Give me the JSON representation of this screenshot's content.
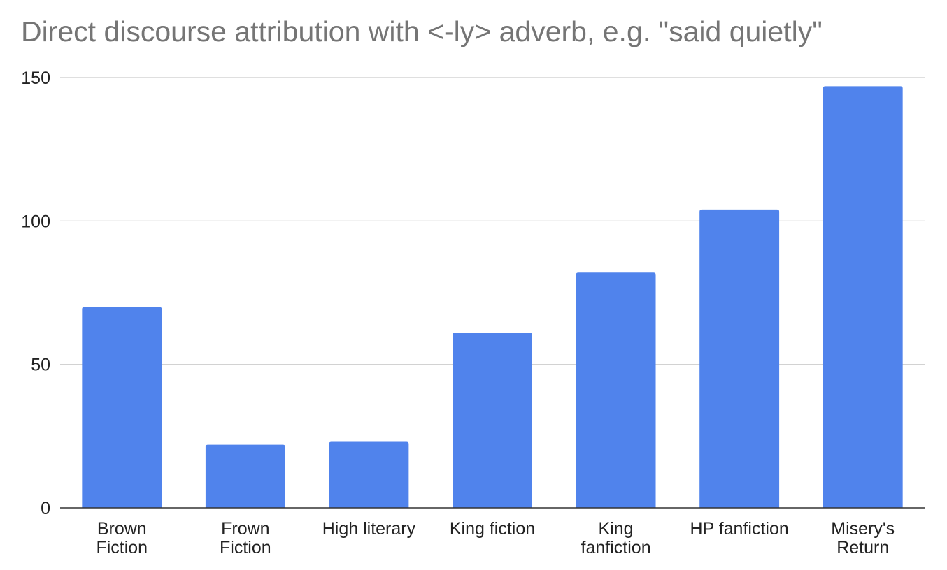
{
  "chart_data": {
    "type": "bar",
    "title": "Direct discourse attribution with <-ly> adverb, e.g. \"said quietly\"",
    "xlabel": "",
    "ylabel": "",
    "categories": [
      [
        "Brown",
        "Fiction"
      ],
      [
        "Frown",
        "Fiction"
      ],
      [
        "High literary"
      ],
      [
        "King fiction"
      ],
      [
        "King",
        "fanfiction"
      ],
      [
        "HP fanfiction"
      ],
      [
        "Misery's",
        "Return"
      ]
    ],
    "series": [
      {
        "values": [
          70,
          22,
          23,
          61,
          82,
          104,
          147
        ],
        "color": "#5083EC"
      }
    ],
    "ylim": [
      0,
      150
    ],
    "yticks": [
      0,
      50,
      100,
      150
    ],
    "grid": true,
    "legend": "none"
  }
}
